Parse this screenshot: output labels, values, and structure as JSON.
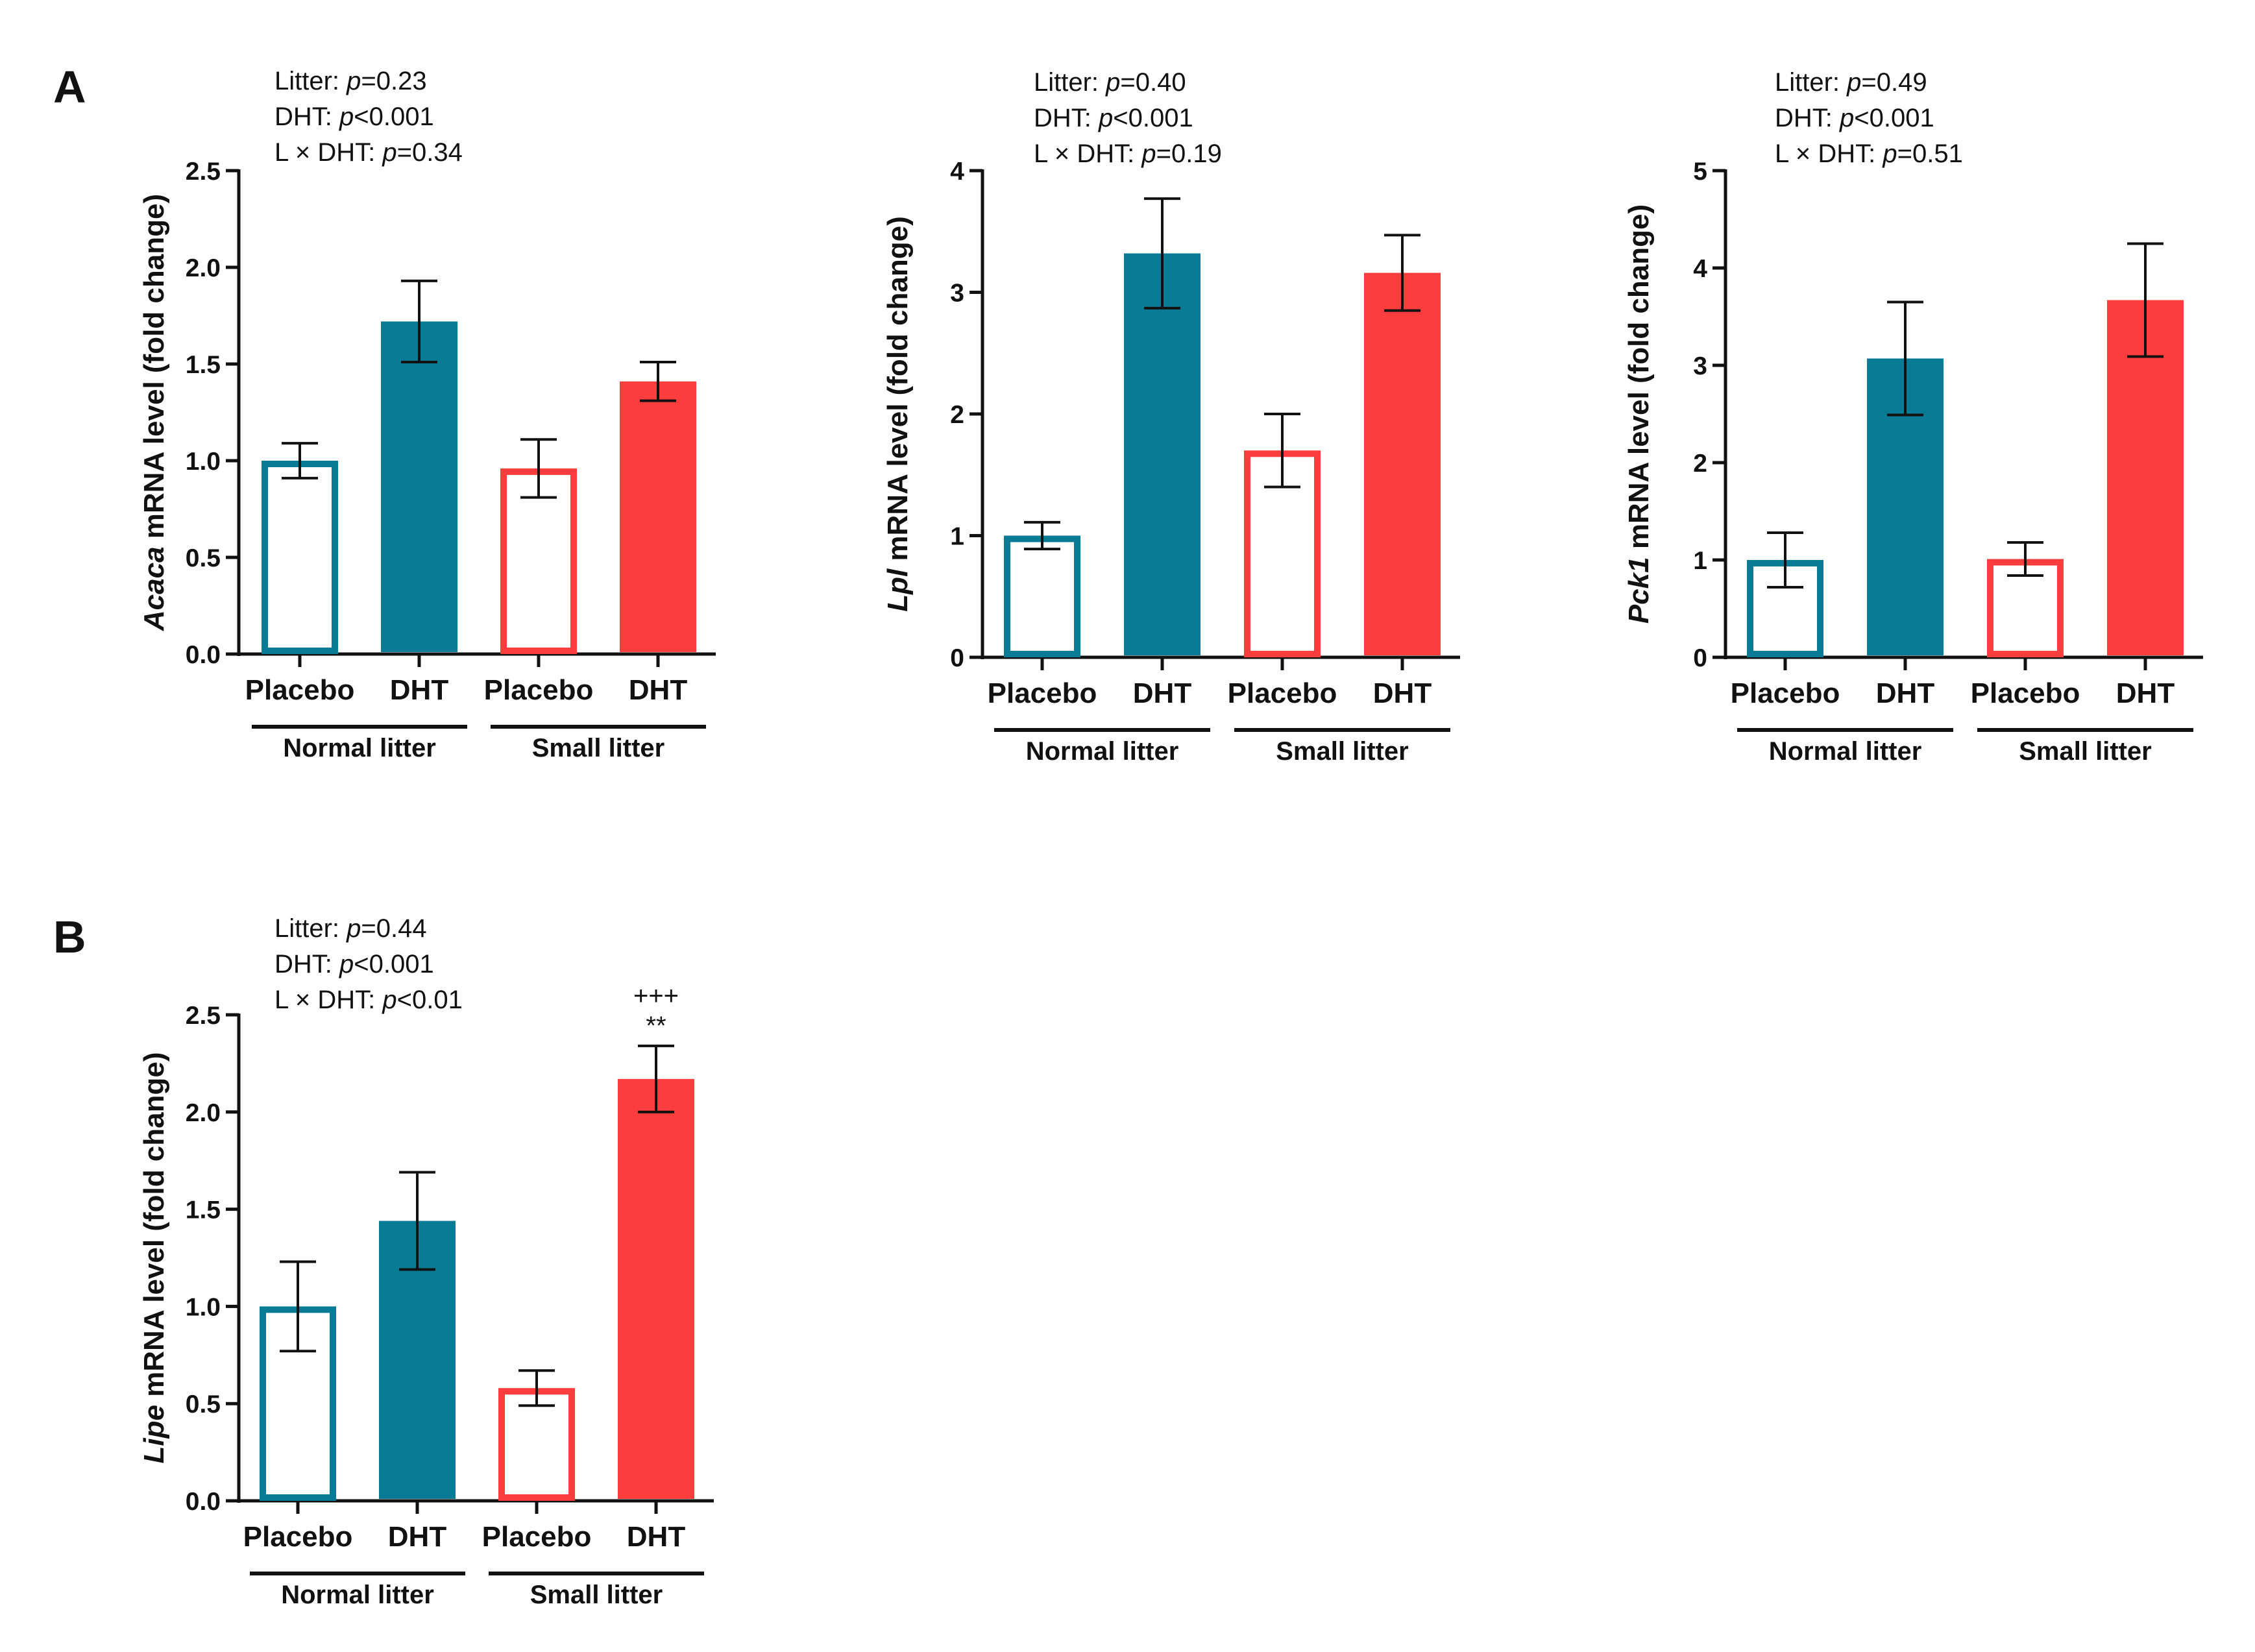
{
  "panels": [
    {
      "id": "A",
      "label": "A"
    },
    {
      "id": "B",
      "label": "B"
    }
  ],
  "colors": {
    "normal": "#0a7b94",
    "small": "#fc3d3d",
    "axis": "#111111"
  },
  "group_labels": [
    "Normal litter",
    "Small litter"
  ],
  "chart_data": [
    {
      "type": "bar",
      "panel": "A",
      "gene": "Acaca",
      "ylabel_suffix": " mRNA level (fold change)",
      "categories": [
        "Placebo",
        "DHT",
        "Placebo",
        "DHT"
      ],
      "groups": [
        "Normal litter",
        "Small litter"
      ],
      "values": [
        1.0,
        1.72,
        0.96,
        1.41
      ],
      "errors": [
        0.09,
        0.21,
        0.15,
        0.1
      ],
      "fills": [
        "open",
        "solid",
        "open",
        "solid"
      ],
      "series_colors": [
        "normal",
        "normal",
        "small",
        "small"
      ],
      "ylim": [
        0,
        2.5
      ],
      "yticks": [
        "0.0",
        "0.5",
        "1.0",
        "1.5",
        "2.0",
        "2.5"
      ],
      "stats": [
        {
          "pre": "Litter: ",
          "p": "p",
          "post": "=0.23"
        },
        {
          "pre": "DHT: ",
          "p": "p",
          "post": "<0.001"
        },
        {
          "pre": "L × DHT: ",
          "p": "p",
          "post": "=0.34"
        }
      ],
      "sig": []
    },
    {
      "type": "bar",
      "panel": "A",
      "gene": "Lpl",
      "ylabel_suffix": " mRNA level (fold change)",
      "categories": [
        "Placebo",
        "DHT",
        "Placebo",
        "DHT"
      ],
      "groups": [
        "Normal litter",
        "Small litter"
      ],
      "values": [
        1.0,
        3.32,
        1.7,
        3.16
      ],
      "errors": [
        0.11,
        0.45,
        0.3,
        0.31
      ],
      "fills": [
        "open",
        "solid",
        "open",
        "solid"
      ],
      "series_colors": [
        "normal",
        "normal",
        "small",
        "small"
      ],
      "ylim": [
        0,
        4
      ],
      "yticks": [
        "0",
        "1",
        "2",
        "3",
        "4"
      ],
      "stats": [
        {
          "pre": "Litter: ",
          "p": "p",
          "post": "=0.40"
        },
        {
          "pre": "DHT: ",
          "p": "p",
          "post": "<0.001"
        },
        {
          "pre": "L × DHT: ",
          "p": "p",
          "post": "=0.19"
        }
      ],
      "sig": []
    },
    {
      "type": "bar",
      "panel": "A",
      "gene": "Pck1",
      "ylabel_suffix": " mRNA level (fold change)",
      "categories": [
        "Placebo",
        "DHT",
        "Placebo",
        "DHT"
      ],
      "groups": [
        "Normal litter",
        "Small litter"
      ],
      "values": [
        1.0,
        3.07,
        1.01,
        3.67
      ],
      "errors": [
        0.28,
        0.58,
        0.17,
        0.58
      ],
      "fills": [
        "open",
        "solid",
        "open",
        "solid"
      ],
      "series_colors": [
        "normal",
        "normal",
        "small",
        "small"
      ],
      "ylim": [
        0,
        5
      ],
      "yticks": [
        "0",
        "1",
        "2",
        "3",
        "4",
        "5"
      ],
      "stats": [
        {
          "pre": "Litter: ",
          "p": "p",
          "post": "=0.49"
        },
        {
          "pre": "DHT: ",
          "p": "p",
          "post": "<0.001"
        },
        {
          "pre": "L × DHT: ",
          "p": "p",
          "post": "=0.51"
        }
      ],
      "sig": []
    },
    {
      "type": "bar",
      "panel": "B",
      "gene": "Lipe",
      "ylabel_suffix": " mRNA level (fold change)",
      "categories": [
        "Placebo",
        "DHT",
        "Placebo",
        "DHT"
      ],
      "groups": [
        "Normal litter",
        "Small litter"
      ],
      "values": [
        1.0,
        1.44,
        0.58,
        2.17
      ],
      "errors": [
        0.23,
        0.25,
        0.09,
        0.17
      ],
      "fills": [
        "open",
        "solid",
        "open",
        "solid"
      ],
      "series_colors": [
        "normal",
        "normal",
        "small",
        "small"
      ],
      "ylim": [
        0,
        2.5
      ],
      "yticks": [
        "0.0",
        "0.5",
        "1.0",
        "1.5",
        "2.0",
        "2.5"
      ],
      "stats": [
        {
          "pre": "Litter: ",
          "p": "p",
          "post": "=0.44"
        },
        {
          "pre": "DHT: ",
          "p": "p",
          "post": "<0.001"
        },
        {
          "pre": "L × DHT: ",
          "p": "p",
          "post": "<0.01"
        }
      ],
      "sig": [
        {
          "bar": 3,
          "lines": [
            "+++",
            "**"
          ]
        }
      ]
    }
  ]
}
